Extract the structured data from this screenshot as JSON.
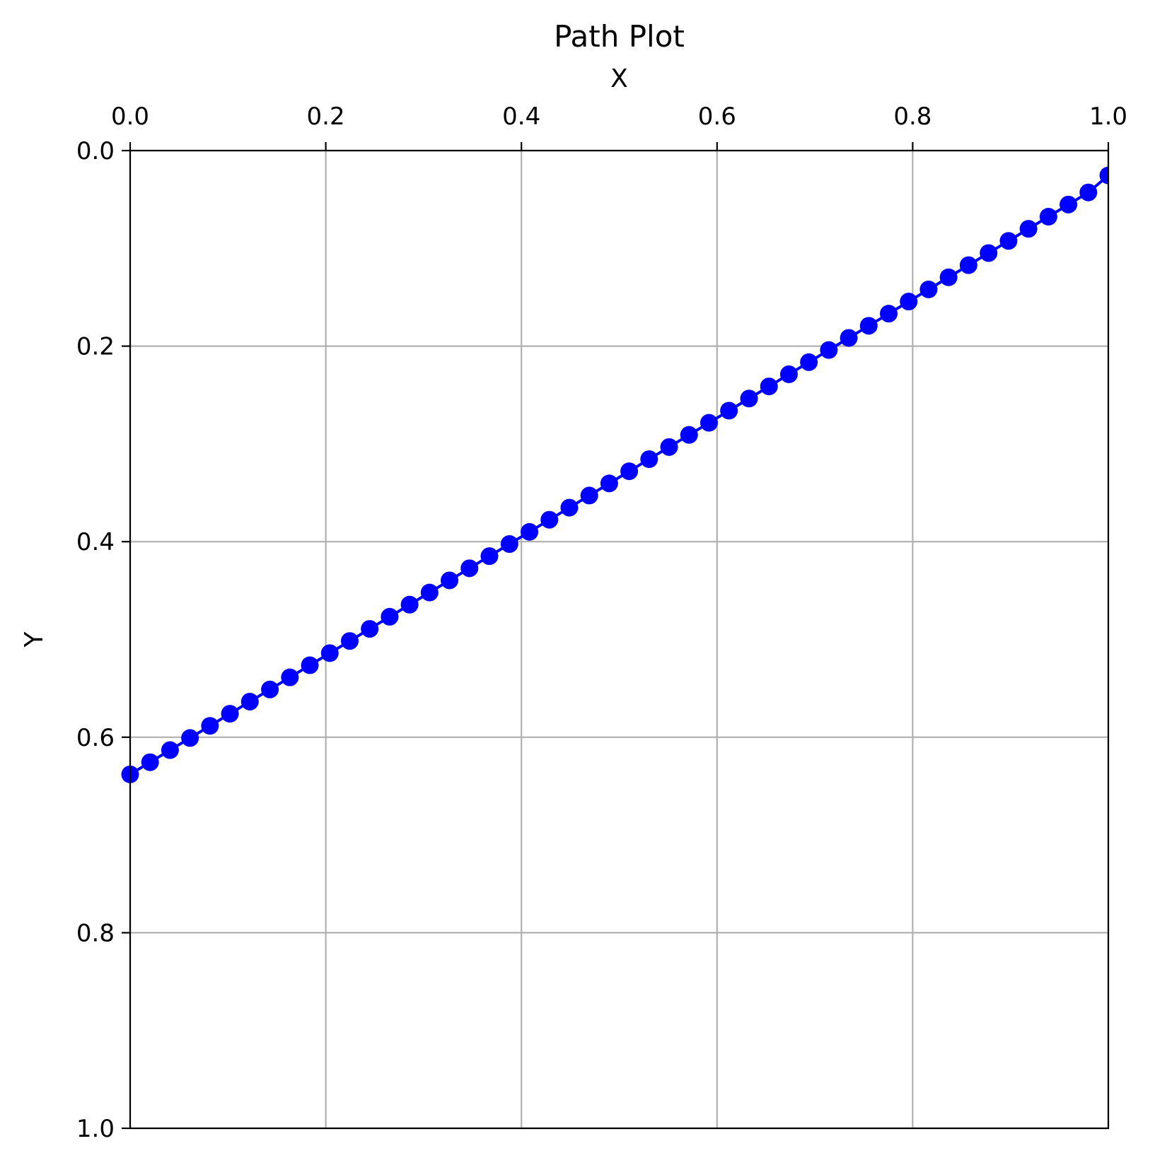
{
  "chart_data": {
    "type": "line",
    "title": "Path Plot",
    "xlabel": "X",
    "ylabel": "Y",
    "xlim": [
      0.0,
      1.0
    ],
    "ylim": [
      0.0,
      1.0
    ],
    "y_axis_inverted": true,
    "x_axis_position": "top",
    "grid": true,
    "legend": "none",
    "x_ticks": [
      "0.0",
      "0.2",
      "0.4",
      "0.6",
      "0.8",
      "1.0"
    ],
    "y_ticks": [
      "0.0",
      "0.2",
      "0.4",
      "0.6",
      "0.8",
      "1.0"
    ],
    "series": [
      {
        "color": "#0000ff",
        "marker": "circle",
        "x": [
          0.0,
          0.0204,
          0.0408,
          0.0612,
          0.0816,
          0.102,
          0.1224,
          0.1429,
          0.1633,
          0.1837,
          0.2041,
          0.2245,
          0.2449,
          0.2653,
          0.2857,
          0.3061,
          0.3265,
          0.3469,
          0.3673,
          0.3878,
          0.4082,
          0.4286,
          0.449,
          0.4694,
          0.4898,
          0.5102,
          0.5306,
          0.551,
          0.5714,
          0.5918,
          0.6122,
          0.6327,
          0.6531,
          0.6735,
          0.6939,
          0.7143,
          0.7347,
          0.7551,
          0.7755,
          0.7959,
          0.8163,
          0.8367,
          0.8571,
          0.8776,
          0.898,
          0.9184,
          0.9388,
          0.9592,
          0.9796,
          1.0
        ],
        "y": [
          0.638,
          0.6256,
          0.6132,
          0.6008,
          0.5884,
          0.576,
          0.5636,
          0.5512,
          0.5388,
          0.5264,
          0.514,
          0.5016,
          0.4892,
          0.4768,
          0.4644,
          0.452,
          0.4396,
          0.4272,
          0.4148,
          0.4024,
          0.39,
          0.3776,
          0.3652,
          0.3528,
          0.3404,
          0.328,
          0.3156,
          0.3032,
          0.2908,
          0.2784,
          0.266,
          0.2536,
          0.2412,
          0.2288,
          0.2164,
          0.204,
          0.1916,
          0.1792,
          0.1668,
          0.1544,
          0.142,
          0.1296,
          0.1172,
          0.1048,
          0.0924,
          0.08,
          0.0676,
          0.0552,
          0.0428,
          0.0254
        ]
      }
    ]
  }
}
